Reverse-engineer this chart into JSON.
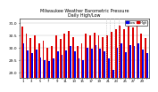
{
  "title": "Milwaukee Weather Barometric Pressure\nDaily High/Low",
  "ylim": [
    28.8,
    31.2
  ],
  "yticks": [
    29.0,
    29.5,
    30.0,
    30.5,
    31.0
  ],
  "bar_width": 0.38,
  "blue_color": "#0000ee",
  "red_color": "#dd0000",
  "bg_color": "#ffffff",
  "grid_color": "#bbbbbb",
  "highs": [
    30.88,
    30.6,
    30.42,
    30.5,
    30.18,
    30.28,
    30.02,
    30.08,
    30.52,
    30.38,
    30.58,
    30.7,
    30.45,
    30.08,
    30.18,
    30.6,
    30.52,
    30.62,
    30.52,
    30.45,
    30.5,
    30.65,
    30.78,
    30.9,
    30.75,
    30.88,
    30.82,
    30.92,
    30.6,
    30.42
  ],
  "lows": [
    30.18,
    29.9,
    29.78,
    29.92,
    29.6,
    29.52,
    29.48,
    29.58,
    29.88,
    29.72,
    29.9,
    30.08,
    29.85,
    29.58,
    29.52,
    30.02,
    29.98,
    30.12,
    29.98,
    29.85,
    29.58,
    29.12,
    30.02,
    30.2,
    29.82,
    30.12,
    30.08,
    30.18,
    29.92,
    29.78
  ],
  "baseline": 28.8,
  "xlabels": [
    "1",
    "",
    "3",
    "",
    "5",
    "",
    "7",
    "",
    "9",
    "",
    "11",
    "",
    "13",
    "",
    "15",
    "",
    "17",
    "",
    "19",
    "",
    "21",
    "",
    "23",
    "",
    "25",
    "",
    "27",
    "",
    "29",
    ""
  ],
  "dotted_lines": [
    19.5,
    20.5,
    21.5,
    22.5
  ],
  "legend_labels": [
    "High",
    "Low"
  ]
}
